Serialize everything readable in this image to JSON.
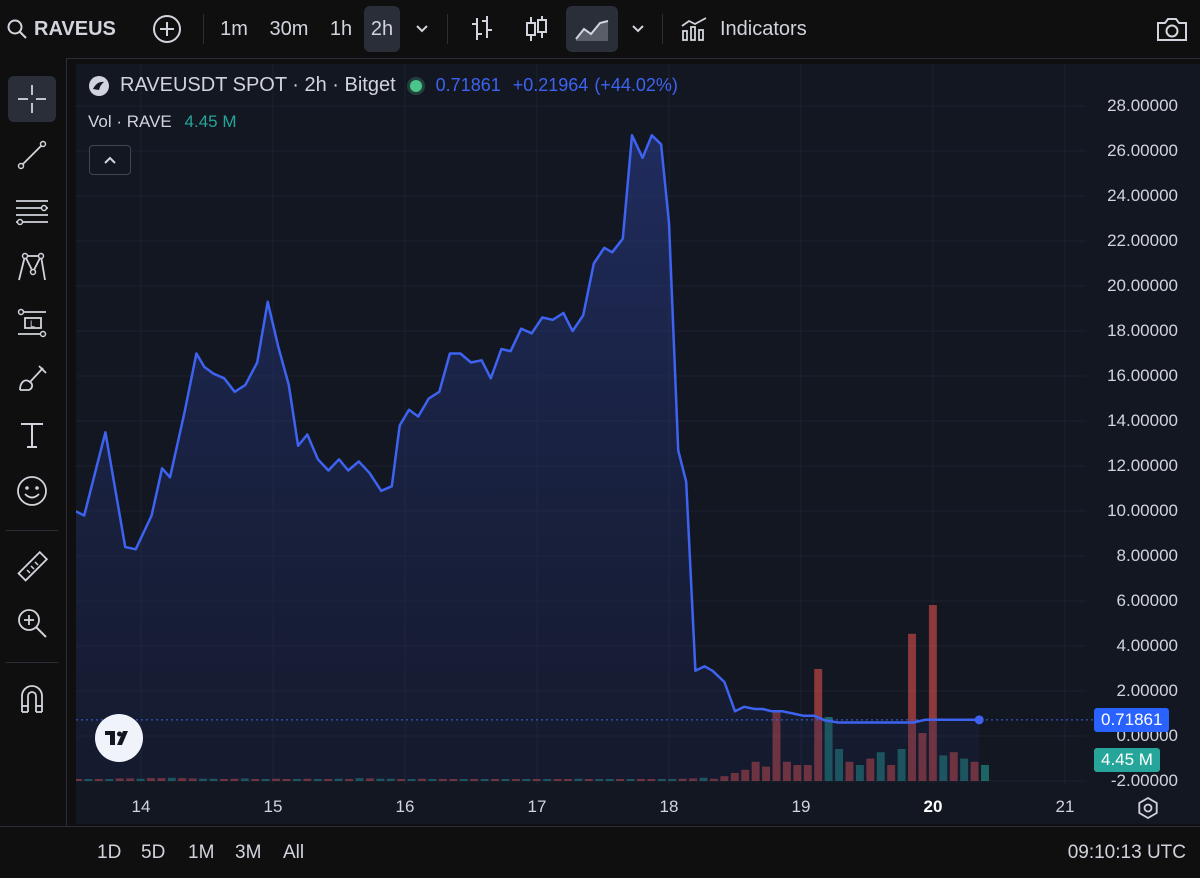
{
  "toolbar": {
    "symbol": "RAVEUS",
    "intervals": [
      "1m",
      "30m",
      "1h",
      "2h"
    ],
    "active_interval": "2h",
    "indicators_label": "Indicators",
    "icons": [
      "search-icon",
      "add-symbol-icon",
      "interval-dropdown-icon",
      "bars-icon",
      "candles-icon",
      "area-chart-icon",
      "chart-type-dropdown-icon",
      "indicators-icon",
      "camera-icon"
    ]
  },
  "left_tools": [
    "crosshair-icon",
    "trend-line-icon",
    "fib-lines-icon",
    "pattern-icon",
    "position-icon",
    "brush-icon",
    "text-icon",
    "emoji-icon",
    "ruler-icon",
    "zoom-icon",
    "magnet-icon"
  ],
  "legend": {
    "title": "RAVEUSDT SPOT · 2h · Bitget",
    "price": "0.71861",
    "change": "+0.21964",
    "change_pct": "(+44.02%)",
    "vol_label": "Vol · RAVE",
    "vol_value": "4.45 M"
  },
  "badges": {
    "price": "0.71861",
    "volume": "4.45 M"
  },
  "bottom": {
    "ranges": [
      "1D",
      "5D",
      "1M",
      "3M",
      "All"
    ],
    "time": "09:10:13 UTC"
  },
  "colors": {
    "line": "#3d63f0",
    "up": "#26a69a",
    "down": "#ef5350",
    "price_badge": "#2962ff",
    "vol_badge": "#26a69a"
  },
  "chart_data": {
    "type": "area",
    "y_ticks": [
      "28.00000",
      "26.00000",
      "24.00000",
      "22.00000",
      "20.00000",
      "18.00000",
      "16.00000",
      "14.00000",
      "12.00000",
      "10.00000",
      "8.00000",
      "6.00000",
      "4.00000",
      "2.00000",
      "0.00000",
      "-2.00000"
    ],
    "ylim": [
      -2,
      28
    ],
    "x_ticks": [
      "14",
      "15",
      "16",
      "17",
      "18",
      "19",
      "20",
      "21"
    ],
    "bold_x_tick": "20",
    "xlim": [
      13.5,
      21.2
    ],
    "series": [
      {
        "x": [
          13.5,
          13.57,
          13.73,
          13.88,
          13.96,
          14.08,
          14.16,
          14.22,
          14.33,
          14.42,
          14.48,
          14.55,
          14.63,
          14.71,
          14.79,
          14.88,
          14.96,
          15.04,
          15.12,
          15.19,
          15.26,
          15.34,
          15.42,
          15.5,
          15.57,
          15.65,
          15.73,
          15.82,
          15.9,
          15.96,
          16.03,
          16.1,
          16.18,
          16.26,
          16.34,
          16.42,
          16.5,
          16.58,
          16.65,
          16.73,
          16.8,
          16.88,
          16.96,
          17.04,
          17.12,
          17.2,
          17.27,
          17.35,
          17.43,
          17.51,
          17.57,
          17.65,
          17.72,
          17.8,
          17.87,
          17.94,
          18.0,
          18.07,
          18.13,
          18.2,
          18.27,
          18.33,
          18.42,
          18.5,
          18.57,
          18.65,
          18.71,
          18.78,
          18.86,
          18.94,
          19.02,
          19.1,
          19.18,
          19.28,
          19.4,
          19.55,
          19.7,
          19.85,
          19.94,
          20.04,
          20.14,
          20.25,
          20.35
        ],
        "y": [
          10.0,
          9.8,
          13.5,
          8.4,
          8.3,
          9.8,
          11.9,
          11.5,
          14.4,
          17.0,
          16.4,
          16.1,
          15.9,
          15.3,
          15.6,
          16.6,
          19.3,
          17.3,
          15.6,
          12.9,
          13.4,
          12.3,
          11.8,
          12.3,
          11.8,
          12.2,
          11.7,
          10.9,
          11.1,
          13.8,
          14.5,
          14.2,
          15.0,
          15.3,
          17.0,
          17.0,
          16.6,
          16.7,
          15.9,
          17.2,
          17.1,
          18.1,
          17.9,
          18.6,
          18.5,
          18.8,
          18.0,
          18.7,
          21.0,
          21.7,
          21.5,
          22.1,
          26.7,
          25.7,
          26.7,
          26.3,
          22.8,
          12.7,
          11.3,
          2.9,
          3.1,
          2.9,
          2.4,
          1.1,
          1.3,
          1.2,
          1.2,
          1.1,
          1.1,
          1.0,
          0.9,
          0.9,
          0.7,
          0.6,
          0.6,
          0.6,
          0.6,
          0.6,
          0.72,
          0.72,
          0.72,
          0.72,
          0.72
        ]
      }
    ],
    "last_value": 0.71861,
    "volume": {
      "values": [
        0.05,
        0.05,
        0.06,
        0.06,
        0.08,
        0.08,
        0.07,
        0.09,
        0.09,
        0.1,
        0.09,
        0.08,
        0.07,
        0.07,
        0.06,
        0.07,
        0.08,
        0.06,
        0.05,
        0.07,
        0.06,
        0.05,
        0.07,
        0.06,
        0.05,
        0.07,
        0.06,
        0.09,
        0.08,
        0.07,
        0.07,
        0.06,
        0.05,
        0.07,
        0.06,
        0.06,
        0.06,
        0.05,
        0.06,
        0.06,
        0.05,
        0.06,
        0.05,
        0.05,
        0.06,
        0.05,
        0.06,
        0.06,
        0.07,
        0.05,
        0.06,
        0.05,
        0.06,
        0.06,
        0.06,
        0.06,
        0.05,
        0.05,
        0.07,
        0.08,
        0.1,
        0.07,
        0.15,
        0.25,
        0.35,
        0.6,
        0.45,
        2.2,
        0.6,
        0.5,
        0.5,
        3.5,
        2.0,
        1.0,
        0.6,
        0.5,
        0.7,
        0.9,
        0.5,
        1.0,
        4.6,
        1.5,
        5.5,
        0.8,
        0.9,
        0.7,
        0.6,
        0.5
      ],
      "up": [
        0,
        1,
        0,
        1,
        0,
        0,
        1,
        0,
        0,
        1,
        0,
        0,
        1,
        1,
        0,
        0,
        1,
        0,
        1,
        0,
        0,
        1,
        0,
        1,
        0,
        1,
        0,
        1,
        0,
        1,
        1,
        0,
        1,
        0,
        1,
        0,
        0,
        1,
        0,
        1,
        0,
        1,
        0,
        1,
        0,
        1,
        0,
        0,
        1,
        0,
        1,
        1,
        0,
        1,
        0,
        0,
        1,
        1,
        0,
        0,
        1,
        0,
        0,
        0,
        0,
        0,
        0,
        0,
        0,
        0,
        0,
        0,
        1,
        1,
        0,
        1,
        0,
        1,
        0,
        1,
        0,
        0,
        0,
        1,
        0,
        1,
        0,
        1
      ]
    }
  }
}
